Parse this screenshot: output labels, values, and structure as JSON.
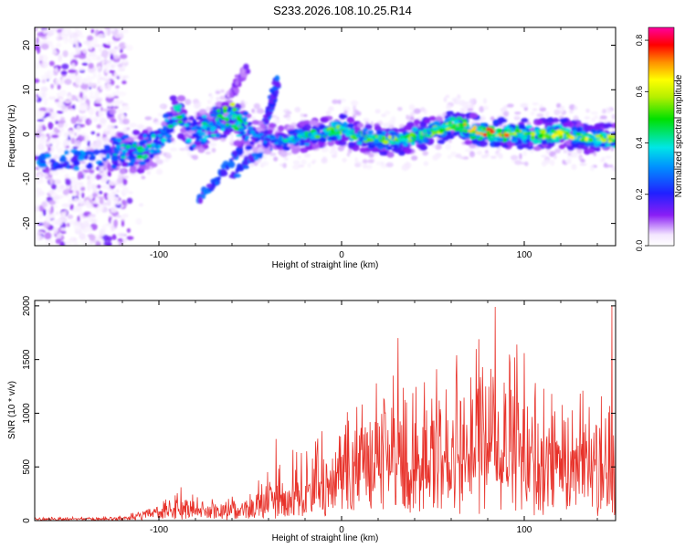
{
  "title": "S233.2026.108.10.25.R14",
  "colors": {
    "snr_line": "#e8322a",
    "axes": "#000000",
    "background": "#ffffff"
  },
  "chart_data": [
    {
      "type": "heatmap",
      "xlabel": "Height of straight line (km)",
      "ylabel": "Frequency (Hz)",
      "xlim": [
        -168,
        150
      ],
      "ylim": [
        -25,
        24
      ],
      "xticks": [
        -100,
        0,
        100
      ],
      "yticks": [
        -20,
        -10,
        0,
        10,
        20
      ],
      "colorbar": {
        "label": "Normalized spectral amplitude",
        "range": [
          0,
          0.85
        ],
        "ticks": [
          0.0,
          0.2,
          0.4,
          0.6,
          0.8
        ],
        "colormap": "rainbow (white-violet-blue-cyan-green-yellow-red-magenta)"
      },
      "ridge": [
        {
          "x": -168,
          "f": -7,
          "a": 0.3
        },
        {
          "x": -150,
          "f": -6,
          "a": 0.3
        },
        {
          "x": -120,
          "f": -4,
          "a": 0.38
        },
        {
          "x": -110,
          "f": -4,
          "a": 0.42
        },
        {
          "x": -100,
          "f": -2,
          "a": 0.36
        },
        {
          "x": -90,
          "f": 5,
          "a": 0.45
        },
        {
          "x": -82,
          "f": 0,
          "a": 0.35
        },
        {
          "x": -72,
          "f": 2,
          "a": 0.4
        },
        {
          "x": -60,
          "f": 4,
          "a": 0.55
        },
        {
          "x": -50,
          "f": 0,
          "a": 0.3
        },
        {
          "x": -40,
          "f": -1,
          "a": 0.3
        },
        {
          "x": -30,
          "f": -1.5,
          "a": 0.38
        },
        {
          "x": -15,
          "f": 0,
          "a": 0.5
        },
        {
          "x": 0,
          "f": 1,
          "a": 0.55
        },
        {
          "x": 15,
          "f": -1,
          "a": 0.48
        },
        {
          "x": 30,
          "f": -1.5,
          "a": 0.55
        },
        {
          "x": 45,
          "f": 0,
          "a": 0.5
        },
        {
          "x": 60,
          "f": 2,
          "a": 0.58
        },
        {
          "x": 80,
          "f": 0.5,
          "a": 0.75
        },
        {
          "x": 100,
          "f": 0,
          "a": 0.6
        },
        {
          "x": 120,
          "f": 0,
          "a": 0.58
        },
        {
          "x": 140,
          "f": -1,
          "a": 0.6
        },
        {
          "x": 150,
          "f": -1,
          "a": 0.55
        }
      ],
      "branches": [
        {
          "from": {
            "x": -78,
            "f": -15
          },
          "to": {
            "x": -55,
            "f": -3
          },
          "a": 0.25
        },
        {
          "from": {
            "x": -60,
            "f": -9
          },
          "to": {
            "x": -35,
            "f": -1
          },
          "a": 0.25
        },
        {
          "from": {
            "x": -62,
            "f": 8
          },
          "to": {
            "x": -52,
            "f": 15
          },
          "a": 0.12
        },
        {
          "from": {
            "x": -42,
            "f": 2
          },
          "to": {
            "x": -35,
            "f": 12
          },
          "a": 0.25
        }
      ]
    },
    {
      "type": "line",
      "xlabel": "Height of straight line (km)",
      "ylabel": "SNR (10 * v/v)",
      "xlim": [
        -168,
        150
      ],
      "ylim": [
        0,
        2050
      ],
      "xticks": [
        -100,
        0,
        100
      ],
      "yticks": [
        0,
        500,
        1000,
        1500,
        2000
      ],
      "series": [
        {
          "name": "SNR",
          "envelope": [
            {
              "x": -168,
              "base": 15,
              "amp": 15
            },
            {
              "x": -125,
              "base": 20,
              "amp": 20
            },
            {
              "x": -105,
              "base": 60,
              "amp": 90
            },
            {
              "x": -90,
              "base": 110,
              "amp": 170
            },
            {
              "x": -70,
              "base": 110,
              "amp": 150
            },
            {
              "x": -50,
              "base": 120,
              "amp": 170
            },
            {
              "x": -38,
              "base": 200,
              "amp": 420
            },
            {
              "x": -20,
              "base": 300,
              "amp": 450
            },
            {
              "x": 0,
              "base": 450,
              "amp": 650
            },
            {
              "x": 20,
              "base": 600,
              "amp": 900
            },
            {
              "x": 40,
              "base": 550,
              "amp": 1000
            },
            {
              "x": 60,
              "base": 600,
              "amp": 1050
            },
            {
              "x": 80,
              "base": 650,
              "amp": 1200
            },
            {
              "x": 100,
              "base": 600,
              "amp": 950
            },
            {
              "x": 120,
              "base": 550,
              "amp": 900
            },
            {
              "x": 150,
              "base": 500,
              "amp": 800
            }
          ],
          "peaks": [
            {
              "x": -88,
              "y": 310
            },
            {
              "x": -36,
              "y": 760
            },
            {
              "x": 31,
              "y": 1700
            },
            {
              "x": 52,
              "y": 1410
            },
            {
              "x": 75,
              "y": 1690
            },
            {
              "x": 84,
              "y": 1990
            },
            {
              "x": 96,
              "y": 1640
            },
            {
              "x": 100,
              "y": 1560
            },
            {
              "x": 115,
              "y": 1180
            },
            {
              "x": 132,
              "y": 1210
            },
            {
              "x": 148,
              "y": 2000
            }
          ]
        }
      ]
    }
  ]
}
